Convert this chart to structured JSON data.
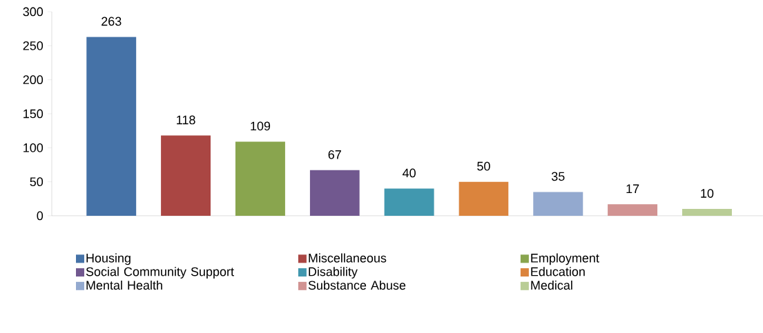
{
  "chart_data": {
    "type": "bar",
    "categories": [
      null,
      null,
      null,
      null,
      null,
      null,
      null,
      null,
      null
    ],
    "series": [
      {
        "name": "Housing",
        "color": "#4572a7",
        "values": [
          263,
          null,
          null,
          null,
          null,
          null,
          null,
          null,
          null
        ]
      },
      {
        "name": "Miscellaneous",
        "color": "#aa4643",
        "values": [
          null,
          118,
          null,
          null,
          null,
          null,
          null,
          null,
          null
        ]
      },
      {
        "name": "Employment",
        "color": "#89a54e",
        "values": [
          null,
          null,
          109,
          null,
          null,
          null,
          null,
          null,
          null
        ]
      },
      {
        "name": "Social Community Support",
        "color": "#71588f",
        "values": [
          null,
          null,
          null,
          67,
          null,
          null,
          null,
          null,
          null
        ]
      },
      {
        "name": "Disability",
        "color": "#4198af",
        "values": [
          null,
          null,
          null,
          null,
          40,
          null,
          null,
          null,
          null
        ]
      },
      {
        "name": "Education",
        "color": "#db843d",
        "values": [
          null,
          null,
          null,
          null,
          null,
          50,
          null,
          null,
          null
        ]
      },
      {
        "name": "Mental Health",
        "color": "#93a9cf",
        "values": [
          null,
          null,
          null,
          null,
          null,
          null,
          35,
          null,
          null
        ]
      },
      {
        "name": "Substance Abuse",
        "color": "#d19392",
        "values": [
          null,
          null,
          null,
          null,
          null,
          null,
          null,
          17,
          null
        ]
      },
      {
        "name": "Medical",
        "color": "#b9cd96",
        "values": [
          null,
          null,
          null,
          null,
          null,
          null,
          null,
          null,
          10
        ]
      }
    ],
    "ylim": [
      0,
      300
    ],
    "yticks": [
      0,
      50,
      100,
      150,
      200,
      250,
      300
    ],
    "data_labels": true,
    "grid": false,
    "legend": "bottom",
    "tick_labels": "y"
  }
}
